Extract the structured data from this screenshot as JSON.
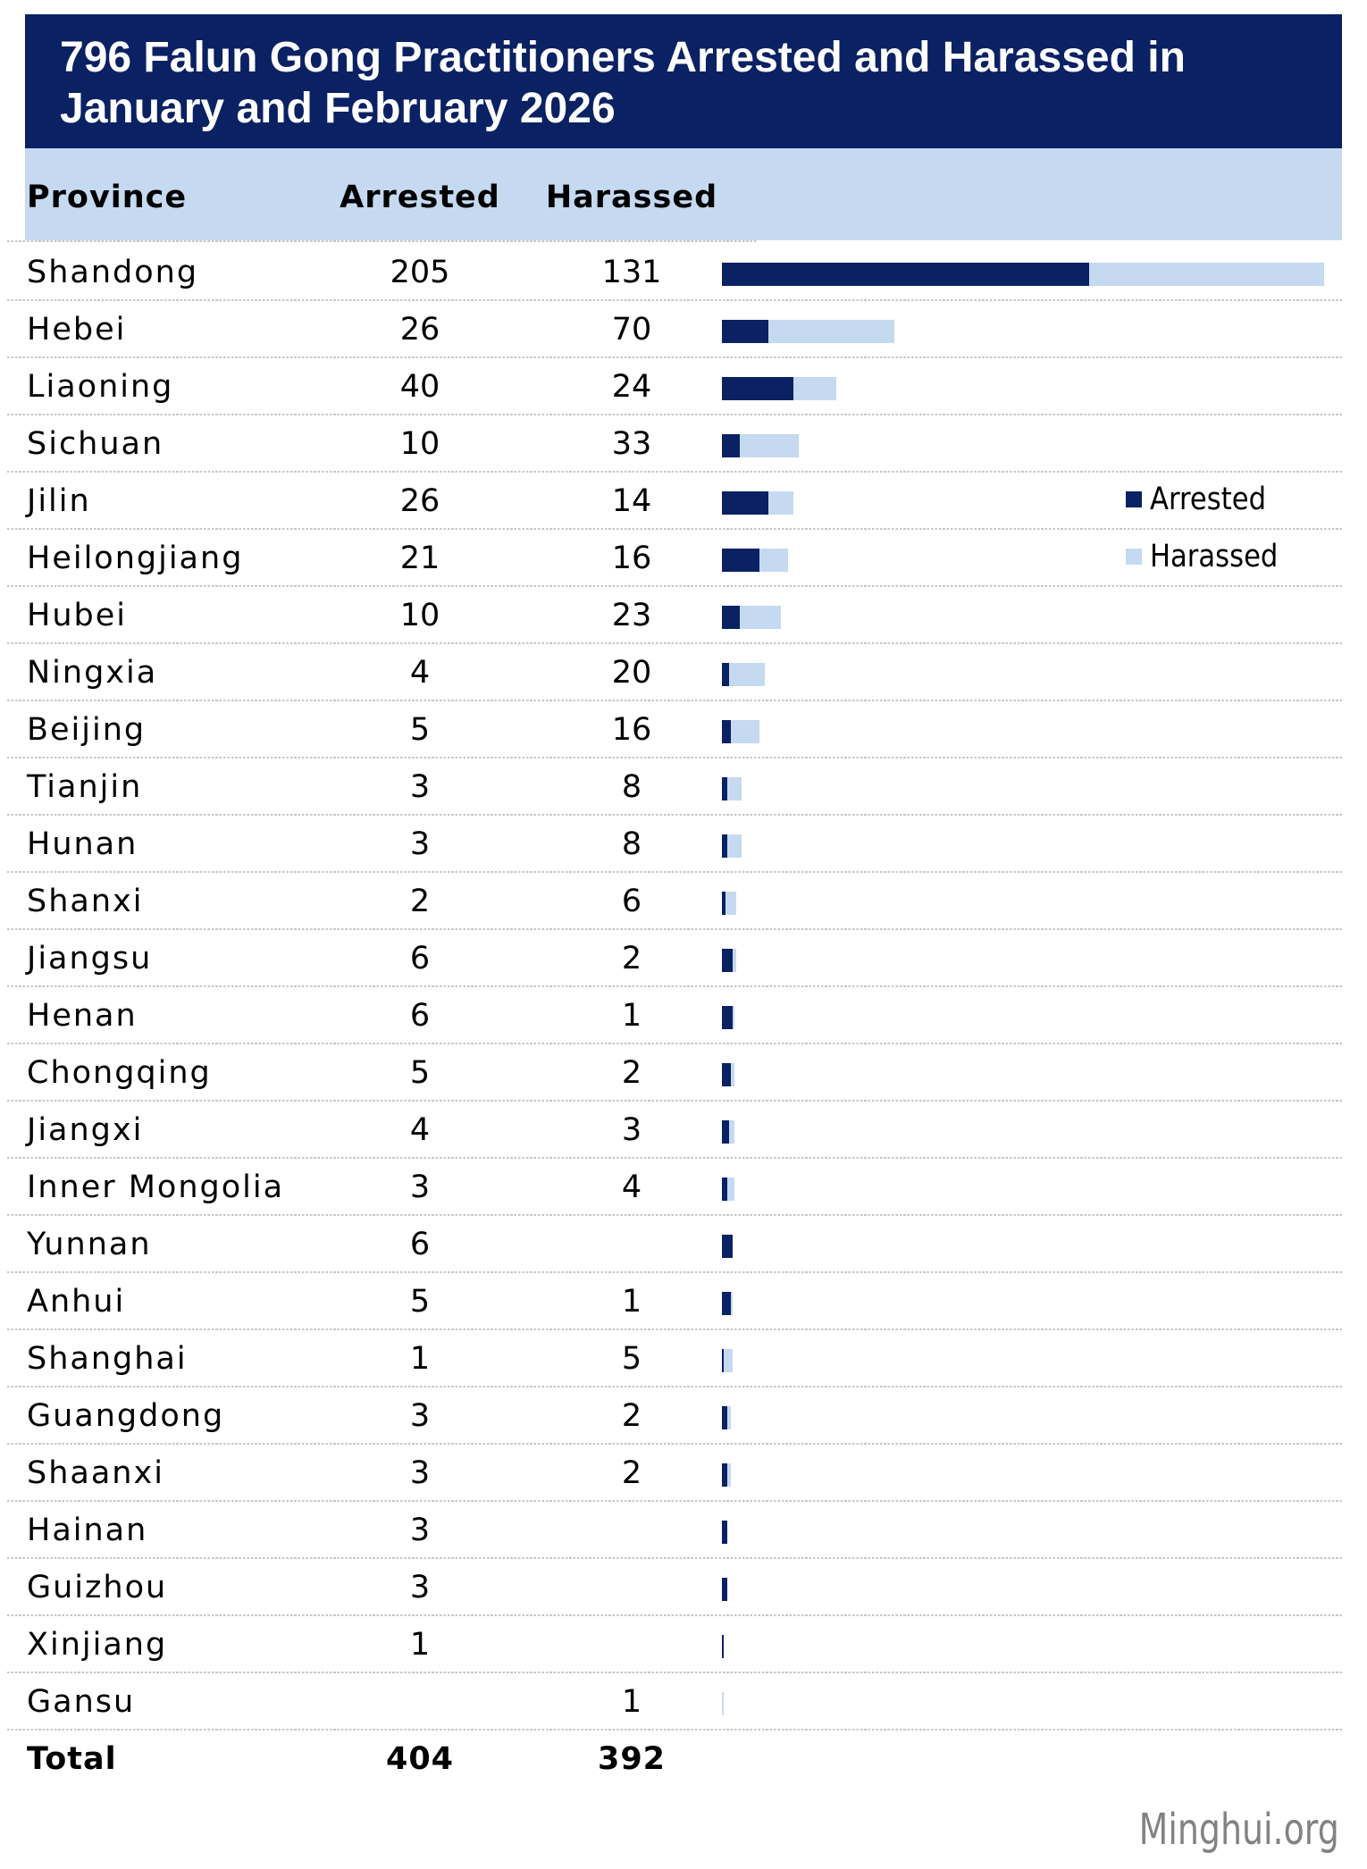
{
  "title": {
    "lines": [
      "796 Falun Gong Practitioners Arrested and Harassed in",
      "January and February 2026"
    ]
  },
  "table": {
    "header": {
      "province": "Province",
      "arrested": "Arrested",
      "harassed": "Harassed"
    },
    "total_label": "Total",
    "total_arrested": "404",
    "total_harassed": "392"
  },
  "legend": {
    "arrested": "Arrested",
    "harassed": "Harassed"
  },
  "footer": {
    "source": "Minghui.org"
  },
  "colors": {
    "navy": "#0a2163",
    "light_blue": "#c5d9f1",
    "separator": "#c7c7c7",
    "source_gray": "#828282"
  },
  "chart_data": {
    "type": "bar",
    "orientation": "horizontal",
    "stacked": true,
    "title": "796 Falun Gong Practitioners Arrested and Harassed in January and February 2026",
    "categories": [
      "Shandong",
      "Hebei",
      "Liaoning",
      "Sichuan",
      "Jilin",
      "Heilongjiang",
      "Hubei",
      "Ningxia",
      "Beijing",
      "Tianjin",
      "Hunan",
      "Shanxi",
      "Jiangsu",
      "Henan",
      "Chongqing",
      "Jiangxi",
      "Inner Mongolia",
      "Yunnan",
      "Anhui",
      "Shanghai",
      "Guangdong",
      "Shaanxi",
      "Hainan",
      "Guizhou",
      "Xinjiang",
      "Gansu"
    ],
    "series": [
      {
        "name": "Arrested",
        "values": [
          205,
          26,
          40,
          10,
          26,
          21,
          10,
          4,
          5,
          3,
          3,
          2,
          6,
          6,
          5,
          4,
          3,
          6,
          5,
          1,
          3,
          3,
          3,
          3,
          1,
          null
        ]
      },
      {
        "name": "Harassed",
        "values": [
          131,
          70,
          24,
          33,
          14,
          16,
          23,
          20,
          16,
          8,
          8,
          6,
          2,
          1,
          2,
          3,
          4,
          null,
          1,
          5,
          2,
          2,
          null,
          null,
          null,
          1
        ]
      }
    ],
    "totals": {
      "Arrested": 404,
      "Harassed": 392
    },
    "legend_entries": [
      "Arrested",
      "Harassed"
    ]
  }
}
